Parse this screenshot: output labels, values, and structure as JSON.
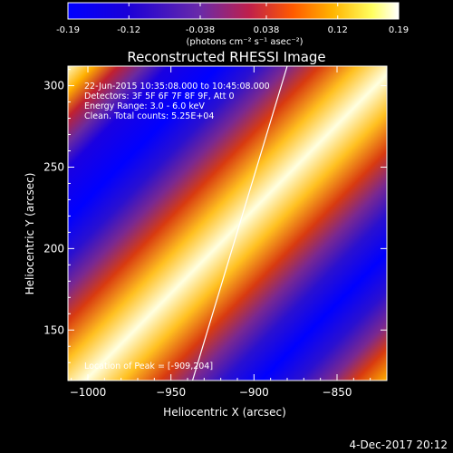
{
  "colorbar": {
    "ticks": [
      "-0.19",
      "-0.12",
      "-0.038",
      "0.038",
      "0.12",
      "0.19"
    ],
    "tick_values": [
      -0.19,
      -0.12,
      -0.038,
      0.038,
      0.12,
      0.19
    ],
    "range": [
      -0.19,
      0.19
    ],
    "units": "(photons cm⁻² s⁻¹ asec⁻²)",
    "colormap": [
      "#0000ff",
      "#1a00d8",
      "#6a2aa8",
      "#c0204a",
      "#ff5a00",
      "#ffb400",
      "#ffff60",
      "#ffffff"
    ]
  },
  "chart_data": {
    "type": "heatmap",
    "title": "Reconstructed RHESSI Image",
    "xlabel": "Heliocentric X (arcsec)",
    "ylabel": "Heliocentric Y (arcsec)",
    "xlim": [
      -1012,
      -820
    ],
    "ylim": [
      119,
      312
    ],
    "xticks": [
      -1000,
      -950,
      -900,
      -850
    ],
    "yticks": [
      150,
      200,
      250,
      300
    ],
    "pattern": "diagonal fringes (positive slope) alternating blue/purple/red/yellow/white",
    "limb_line": [
      [
        -937,
        119
      ],
      [
        -880,
        312
      ]
    ],
    "annotations": [
      "22-Jun-2015 10:35:08.000 to 10:45:08.000",
      "Detectors: 3F 5F 6F 7F 8F 9F, Att 0",
      "Energy Range: 3.0 - 6.0 keV",
      "Clean.   Total counts: 5.25E+04",
      "Location of Peak = [-909,204]"
    ]
  },
  "footer": {
    "timestamp": "4-Dec-2017 20:12"
  }
}
